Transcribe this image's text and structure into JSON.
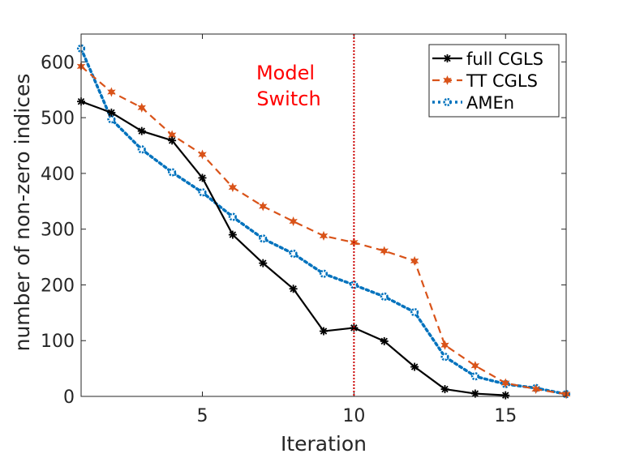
{
  "chart_data": {
    "type": "line",
    "title": "",
    "xlabel": "Iteration",
    "ylabel": "number of non-zero indices",
    "xlim": [
      1,
      17
    ],
    "ylim": [
      0,
      650
    ],
    "xticks": [
      5,
      10,
      15
    ],
    "yticks": [
      0,
      100,
      200,
      300,
      400,
      500,
      600
    ],
    "grid": false,
    "legend_position": "top-right",
    "series": [
      {
        "name": "full CGLS",
        "color": "#000000",
        "style": "solid",
        "marker": "asterisk",
        "x": [
          1,
          2,
          3,
          4,
          5,
          6,
          7,
          8,
          9,
          10,
          11,
          12,
          13,
          14,
          15
        ],
        "y": [
          529,
          509,
          476,
          459,
          392,
          290,
          239,
          193,
          117,
          123,
          99,
          53,
          13,
          5,
          2
        ]
      },
      {
        "name": "TT CGLS",
        "color": "#D95319",
        "style": "dashed",
        "marker": "star",
        "x": [
          1,
          2,
          3,
          4,
          5,
          6,
          7,
          8,
          9,
          10,
          11,
          12,
          13,
          14,
          15,
          16,
          17
        ],
        "y": [
          592,
          546,
          518,
          469,
          434,
          375,
          341,
          314,
          288,
          276,
          261,
          243,
          92,
          55,
          24,
          13,
          4
        ]
      },
      {
        "name": "AMEn",
        "color": "#0072BD",
        "style": "dotted",
        "marker": "circle",
        "x": [
          1,
          2,
          3,
          4,
          5,
          6,
          7,
          8,
          9,
          10,
          11,
          12,
          13,
          14,
          15,
          16,
          17
        ],
        "y": [
          624,
          497,
          443,
          402,
          366,
          322,
          283,
          256,
          220,
          200,
          179,
          151,
          71,
          36,
          22,
          15,
          4
        ]
      }
    ],
    "vline": {
      "x": 10,
      "color": "#CC0000",
      "style": "dotted"
    },
    "annotation": {
      "lines": [
        "Model",
        "Switch"
      ],
      "color": "#FF0000"
    }
  }
}
